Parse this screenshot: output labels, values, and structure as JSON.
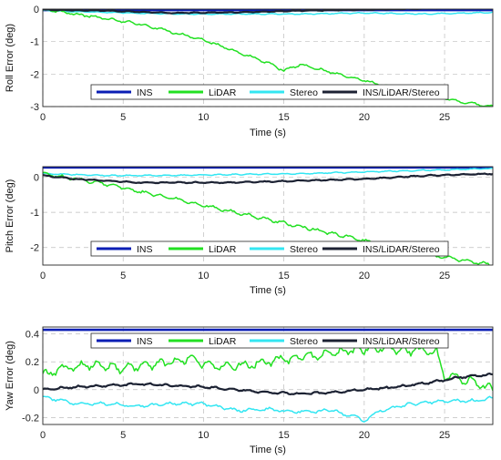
{
  "colors": {
    "INS": "#0a1eb4",
    "LiDAR": "#22e022",
    "Stereo": "#33e6f2",
    "INS/LiDAR/Stereo": "#1c2233"
  },
  "chart_data": [
    {
      "type": "line",
      "xlabel": "Time (s)",
      "ylabel": "Roll Error (deg)",
      "xlim": [
        0,
        28
      ],
      "ylim": [
        -3,
        0
      ],
      "xticks": [
        "0",
        "5",
        "10",
        "15",
        "20",
        "25"
      ],
      "yticks": [
        "0",
        "-1",
        "-2",
        "-3"
      ],
      "grid": true,
      "legend_position": "bottom",
      "legend": [
        "INS",
        "LiDAR",
        "Stereo",
        "INS/LiDAR/Stereo"
      ],
      "series": [
        {
          "name": "INS",
          "x": [
            0,
            28
          ],
          "y": [
            -0.03,
            -0.03
          ]
        },
        {
          "name": "LiDAR",
          "x": [
            0,
            2,
            4,
            6,
            8,
            10,
            12,
            14,
            15,
            16,
            18,
            20,
            22,
            24,
            26,
            28
          ],
          "y": [
            0,
            -0.15,
            -0.3,
            -0.45,
            -0.7,
            -0.95,
            -1.3,
            -1.65,
            -1.9,
            -1.7,
            -1.95,
            -2.2,
            -2.45,
            -2.65,
            -2.85,
            -3.0
          ]
        },
        {
          "name": "Stereo",
          "x": [
            0,
            4,
            8,
            12,
            16,
            20,
            24,
            28
          ],
          "y": [
            -0.05,
            -0.1,
            -0.15,
            -0.15,
            -0.15,
            -0.12,
            -0.15,
            -0.1
          ]
        },
        {
          "name": "INS/LiDAR/Stereo",
          "x": [
            0,
            4,
            8,
            12,
            16,
            20,
            24,
            28
          ],
          "y": [
            -0.02,
            -0.05,
            -0.12,
            -0.1,
            -0.05,
            -0.02,
            0.02,
            0.05
          ]
        }
      ]
    },
    {
      "type": "line",
      "xlabel": "Time (s)",
      "ylabel": "Pitch Error (deg)",
      "xlim": [
        0,
        28
      ],
      "ylim": [
        -2.5,
        0.3
      ],
      "xticks": [
        "0",
        "5",
        "10",
        "15",
        "20",
        "25"
      ],
      "yticks": [
        "0",
        "-1",
        "-2"
      ],
      "grid": true,
      "legend_position": "bottom",
      "legend": [
        "INS",
        "LiDAR",
        "Stereo",
        "INS/LiDAR/Stereo"
      ],
      "series": [
        {
          "name": "INS",
          "x": [
            0,
            28
          ],
          "y": [
            0.28,
            0.28
          ]
        },
        {
          "name": "LiDAR",
          "x": [
            0,
            2,
            4,
            6,
            8,
            10,
            12,
            14,
            16,
            18,
            20,
            22,
            24,
            26,
            28
          ],
          "y": [
            0.1,
            -0.05,
            -0.2,
            -0.4,
            -0.6,
            -0.8,
            -1.0,
            -1.2,
            -1.4,
            -1.6,
            -1.8,
            -2.0,
            -2.2,
            -2.35,
            -2.5
          ]
        },
        {
          "name": "Stereo",
          "x": [
            0,
            4,
            8,
            12,
            16,
            20,
            24,
            28
          ],
          "y": [
            0.1,
            0.05,
            0.05,
            0.08,
            0.1,
            0.15,
            0.2,
            0.25
          ]
        },
        {
          "name": "INS/LiDAR/Stereo",
          "x": [
            0,
            2,
            4,
            6,
            8,
            12,
            16,
            20,
            24,
            28
          ],
          "y": [
            0.05,
            -0.05,
            -0.1,
            -0.15,
            -0.15,
            -0.15,
            -0.1,
            -0.05,
            0.05,
            0.1
          ]
        }
      ]
    },
    {
      "type": "line",
      "xlabel": "Time (s)",
      "ylabel": "Yaw Error (deg)",
      "xlim": [
        0,
        28
      ],
      "ylim": [
        -0.25,
        0.45
      ],
      "xticks": [
        "0",
        "5",
        "10",
        "15",
        "20",
        "25"
      ],
      "yticks": [
        "0.4",
        "0.2",
        "0",
        "-0.2"
      ],
      "grid": true,
      "legend_position": "top",
      "legend": [
        "INS",
        "LiDAR",
        "Stereo",
        "INS/LiDAR/Stereo"
      ],
      "series": [
        {
          "name": "INS",
          "x": [
            0,
            28
          ],
          "y": [
            0.43,
            0.43
          ]
        },
        {
          "name": "LiDAR",
          "x": [
            0,
            1,
            3,
            5,
            7,
            9,
            11,
            13,
            15,
            17,
            19,
            21,
            23,
            24.5,
            25,
            26,
            27,
            28
          ],
          "y": [
            0.1,
            0.15,
            0.18,
            0.15,
            0.18,
            0.22,
            0.16,
            0.18,
            0.22,
            0.24,
            0.28,
            0.3,
            0.28,
            0.27,
            0.1,
            0.08,
            0.05,
            0.0
          ]
        },
        {
          "name": "Stereo",
          "x": [
            0,
            2,
            4,
            6,
            8,
            10,
            12,
            14,
            16,
            18,
            19.5,
            20,
            21,
            23,
            25,
            27,
            28
          ],
          "y": [
            -0.05,
            -0.1,
            -0.1,
            -0.12,
            -0.1,
            -0.1,
            -0.15,
            -0.14,
            -0.16,
            -0.15,
            -0.2,
            -0.22,
            -0.15,
            -0.1,
            -0.08,
            -0.08,
            -0.06
          ]
        },
        {
          "name": "INS/LiDAR/Stereo",
          "x": [
            0,
            2,
            4,
            6,
            8,
            10,
            12,
            14,
            16,
            18,
            20,
            22,
            24,
            26,
            28
          ],
          "y": [
            0.0,
            0.02,
            0.03,
            0.04,
            0.03,
            0.02,
            0.0,
            -0.02,
            -0.03,
            -0.02,
            0.0,
            0.02,
            0.05,
            0.09,
            0.11
          ]
        }
      ]
    }
  ]
}
